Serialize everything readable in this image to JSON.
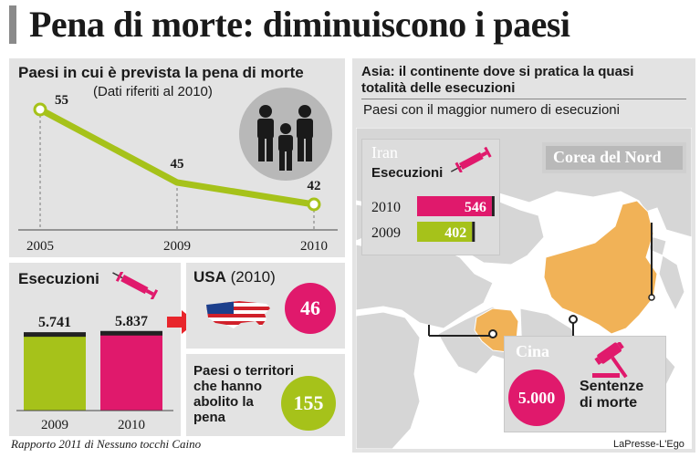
{
  "title": "Pena di morte: diminuiscono i paesi",
  "colors": {
    "magenta": "#e0196c",
    "lime": "#a6c21a",
    "orange": "#f1b257",
    "red": "#e8252b",
    "panel": "#e3e3e3",
    "dark": "#222222"
  },
  "line_panel": {
    "title": "Paesi in cui è prevista la pena di morte",
    "subtitle": "(Dati riferiti al 2010)",
    "icon": "family-icon"
  },
  "exec_panel": {
    "title": "Esecuzioni",
    "icon": "syringe-icon"
  },
  "usa_panel": {
    "country": "USA",
    "year": "(2010)",
    "value": "46",
    "icon": "usa-flag-map-icon"
  },
  "abolished_panel": {
    "line1": "Paesi o territori",
    "line2": "che hanno",
    "line3": "abolito la",
    "line4": "pena",
    "value": "155"
  },
  "asia_panel": {
    "title_line1": "Asia: il continente dove si pratica la quasi",
    "title_line2": "totalità delle esecuzioni",
    "subtitle": "Paesi con il maggior numero di esecuzioni",
    "iran": {
      "name": "Iran",
      "label": "Esecuzioni",
      "rows": [
        {
          "year": "2010",
          "value": "546"
        },
        {
          "year": "2009",
          "value": "402"
        }
      ]
    },
    "korea": {
      "name": "Corea del Nord"
    },
    "cina": {
      "name": "Cina",
      "value": "5.000",
      "line1": "Sentenze",
      "line2": "di morte"
    }
  },
  "chart_data": [
    {
      "type": "line",
      "title": "Paesi in cui è prevista la pena di morte",
      "subtitle": "(Dati riferiti al 2010)",
      "categories": [
        "2005",
        "2009",
        "2010"
      ],
      "values": [
        55,
        45,
        42
      ],
      "labels": [
        "55",
        "45",
        "42"
      ]
    },
    {
      "type": "bar",
      "title": "Esecuzioni",
      "categories": [
        "2009",
        "2010"
      ],
      "values": [
        5741,
        5837
      ],
      "labels": [
        "5.741",
        "5.837"
      ]
    },
    {
      "type": "bar",
      "title": "Iran Esecuzioni",
      "categories": [
        "2010",
        "2009"
      ],
      "values": [
        546,
        402
      ],
      "labels": [
        "546",
        "402"
      ]
    }
  ],
  "footer": {
    "source": "Rapporto 2011 di Nessuno tocchi Caino",
    "brand": "LaPresse-L'Ego"
  }
}
